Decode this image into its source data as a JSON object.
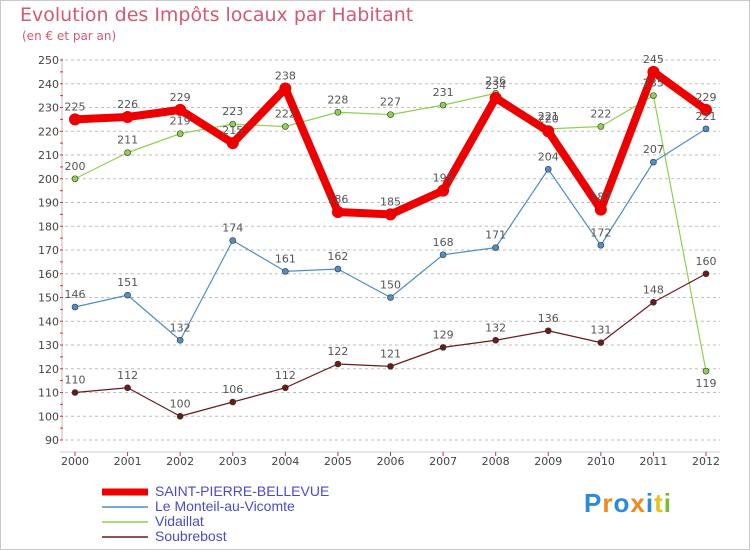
{
  "chart_data": {
    "type": "line",
    "title": "Evolution des Impôts locaux par Habitant",
    "subtitle": "(en € et par an)",
    "xlabel": "",
    "ylabel": "",
    "categories": [
      "2000",
      "2001",
      "2002",
      "2003",
      "2004",
      "2005",
      "2006",
      "2007",
      "2008",
      "2009",
      "2010",
      "2011",
      "2012"
    ],
    "ylim": [
      90,
      250
    ],
    "yticks": [
      90,
      100,
      110,
      120,
      130,
      140,
      150,
      160,
      170,
      180,
      190,
      200,
      210,
      220,
      230,
      240,
      250
    ],
    "grid": "horizontal dashed",
    "series": [
      {
        "name": "SAINT-PIERRE-BELLEVUE",
        "color": "#ee0000",
        "emphasis": true,
        "values": [
          225,
          226,
          229,
          215,
          238,
          186,
          185,
          195,
          234,
          220,
          187,
          245,
          229
        ]
      },
      {
        "name": "Le Monteil-au-Vicomte",
        "color": "#4f8fc7",
        "values": [
          146,
          151,
          132,
          174,
          161,
          162,
          150,
          168,
          171,
          204,
          172,
          207,
          221
        ]
      },
      {
        "name": "Vidaillat",
        "color": "#8fd14f",
        "values": [
          200,
          211,
          219,
          223,
          222,
          228,
          227,
          231,
          236,
          221,
          222,
          235,
          119
        ]
      },
      {
        "name": "Soubrebost",
        "color": "#6b1a1a",
        "values": [
          110,
          112,
          100,
          106,
          112,
          122,
          121,
          129,
          132,
          136,
          131,
          148,
          160
        ]
      }
    ]
  },
  "legend": {
    "items": [
      {
        "label": "SAINT-PIERRE-BELLEVUE",
        "color": "#ee0000"
      },
      {
        "label": "Le Monteil-au-Vicomte",
        "color": "#4f8fc7"
      },
      {
        "label": "Vidaillat",
        "color": "#8fd14f"
      },
      {
        "label": "Soubrebost",
        "color": "#6b1a1a"
      }
    ]
  },
  "logo": {
    "letters": [
      {
        "ch": "P",
        "color": "#2a8bd6"
      },
      {
        "ch": "r",
        "color": "#f08a1c"
      },
      {
        "ch": "o",
        "color": "#2a8bd6"
      },
      {
        "ch": "x",
        "color": "#f08a1c"
      },
      {
        "ch": "i",
        "color": "#2a8bd6"
      },
      {
        "ch": "t",
        "color": "#e8c21a"
      },
      {
        "ch": "i",
        "color": "#7cbb2e"
      }
    ]
  }
}
